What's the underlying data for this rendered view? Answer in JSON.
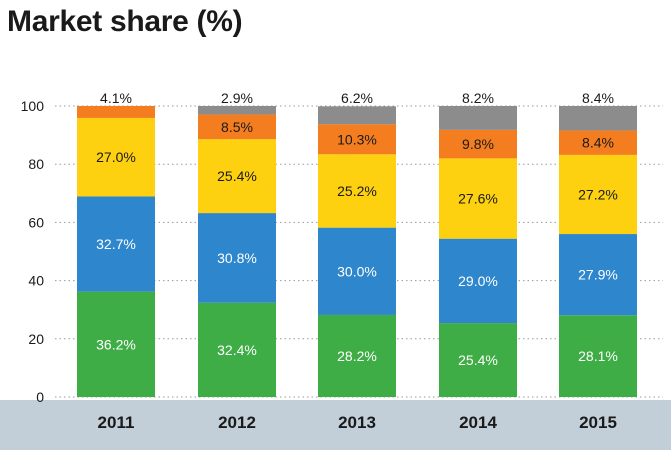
{
  "title": "Market share (%)",
  "chart_data": {
    "type": "bar",
    "stacked": true,
    "title": "Market share (%)",
    "xlabel": "",
    "ylabel": "",
    "ylim": [
      0,
      100
    ],
    "yticks": [
      0,
      20,
      40,
      60,
      80,
      100
    ],
    "categories": [
      "2011",
      "2012",
      "2013",
      "2014",
      "2015"
    ],
    "grid": true,
    "legend": "none",
    "series": [
      {
        "color": "#3fad46",
        "text_color": "#ffffff",
        "values": [
          36.2,
          32.4,
          28.2,
          25.4,
          28.1
        ],
        "labels": [
          "36.2%",
          "32.4%",
          "28.2%",
          "25.4%",
          "28.1%"
        ]
      },
      {
        "color": "#2e86cc",
        "text_color": "#ffffff",
        "values": [
          32.7,
          30.8,
          30.0,
          29.0,
          27.9
        ],
        "labels": [
          "32.7%",
          "30.8%",
          "30.0%",
          "29.0%",
          "27.9%"
        ]
      },
      {
        "color": "#fdd10f",
        "text_color": "#1a1a1a",
        "values": [
          27.0,
          25.4,
          25.2,
          27.6,
          27.2
        ],
        "labels": [
          "27.0%",
          "25.4%",
          "25.2%",
          "27.6%",
          "27.2%"
        ]
      },
      {
        "color": "#f47d20",
        "text_color": "#1a1a1a",
        "values": [
          4.1,
          8.5,
          10.3,
          9.8,
          8.4
        ],
        "labels": [
          "",
          "8.5%",
          "10.3%",
          "9.8%",
          "8.4%"
        ]
      },
      {
        "color": "#8c8c8c",
        "text_color": "#1a1a1a",
        "values": [
          0,
          2.9,
          6.2,
          8.2,
          8.4
        ],
        "labels": [
          "",
          "",
          "",
          "",
          ""
        ]
      }
    ],
    "top_labels": [
      "4.1%",
      "2.9%",
      "6.2%",
      "8.2%",
      "8.4%"
    ],
    "axis_band_color": "#c3cfd8"
  }
}
